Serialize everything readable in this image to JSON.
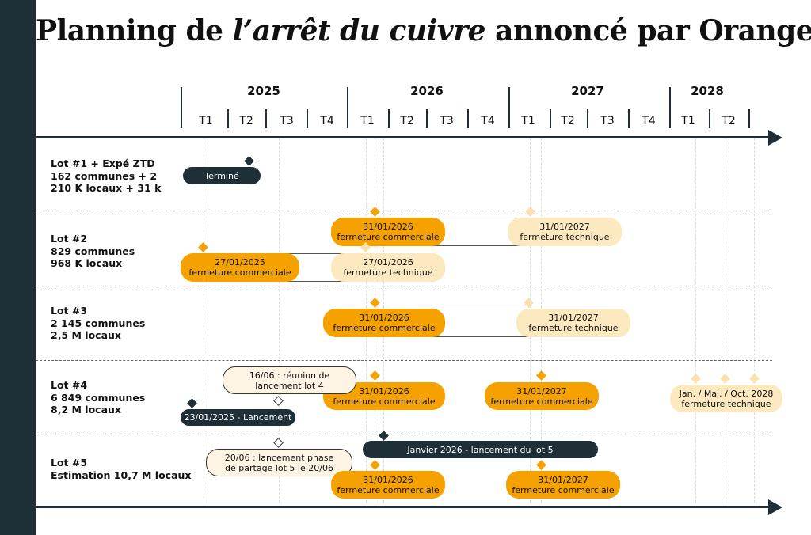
{
  "title": {
    "part1": "Planning de ",
    "italic": "l’arrêt du cuivre",
    "part2": " annoncé par Orange"
  },
  "timeline": {
    "years": [
      "2025",
      "2026",
      "2027",
      "2028"
    ],
    "quarters": [
      "T1",
      "T2",
      "T3",
      "T4",
      "T1",
      "T2",
      "T3",
      "T4",
      "T1",
      "T2",
      "T3",
      "T4",
      "T1",
      "T2"
    ]
  },
  "lots": [
    {
      "lines": [
        "Lot #1 + Expé ZTD",
        "162 communes + 2",
        "210 K  locaux + 31 k"
      ]
    },
    {
      "lines": [
        "Lot #2",
        "829 communes",
        "968 K locaux"
      ]
    },
    {
      "lines": [
        "Lot #3",
        "2 145 communes",
        "2,5 M locaux"
      ]
    },
    {
      "lines": [
        "Lot #4",
        "6 849 communes",
        "8,2 M locaux"
      ]
    },
    {
      "lines": [
        "Lot #5",
        "Estimation 10,7 M locaux"
      ]
    }
  ],
  "events": {
    "lot1_done": "Terminé",
    "lot2_comm": {
      "date": "31/01/2026",
      "label": "fermeture commerciale"
    },
    "lot2_tech": {
      "date": "31/01/2027",
      "label": "fermeture technique"
    },
    "lot2_early_comm": {
      "date": "27/01/2025",
      "label": "fermeture commerciale"
    },
    "lot2_early_tech": {
      "date": "27/01/2026",
      "label": "fermeture technique"
    },
    "lot3_comm": {
      "date": "31/01/2026",
      "label": "fermeture commerciale"
    },
    "lot3_tech": {
      "date": "31/01/2027",
      "label": "fermeture technique"
    },
    "lot4_note": {
      "line1": "16/06 : réunion de",
      "line2": "lancement lot 4"
    },
    "lot4_comm": {
      "date": "31/01/2026",
      "label": "fermeture commerciale"
    },
    "lot4_comm2": {
      "date": "31/01/2027",
      "label": "fermeture commerciale"
    },
    "lot4_tech": {
      "date": "Jan. / Mai. / Oct. 2028",
      "label": "fermeture technique"
    },
    "lot4_launch": "23/01/2025 - Lancement",
    "lot5_launch": "Janvier 2026 - lancement du lot 5",
    "lot5_note": {
      "line1": "20/06 : lancement phase",
      "line2": "de partage lot 5 le 20/06"
    },
    "lot5_comm": {
      "date": "31/01/2026",
      "label": "fermeture commerciale"
    },
    "lot5_comm2": {
      "date": "31/01/2027",
      "label": "fermeture commerciale"
    }
  },
  "colors": {
    "dark": "#1f2f38",
    "orange": "#f5a100",
    "cream": "#fde9bf",
    "note": "#fdf4e3"
  },
  "icons": [
    "milestone-diamond-icon",
    "arrow-right-icon"
  ]
}
